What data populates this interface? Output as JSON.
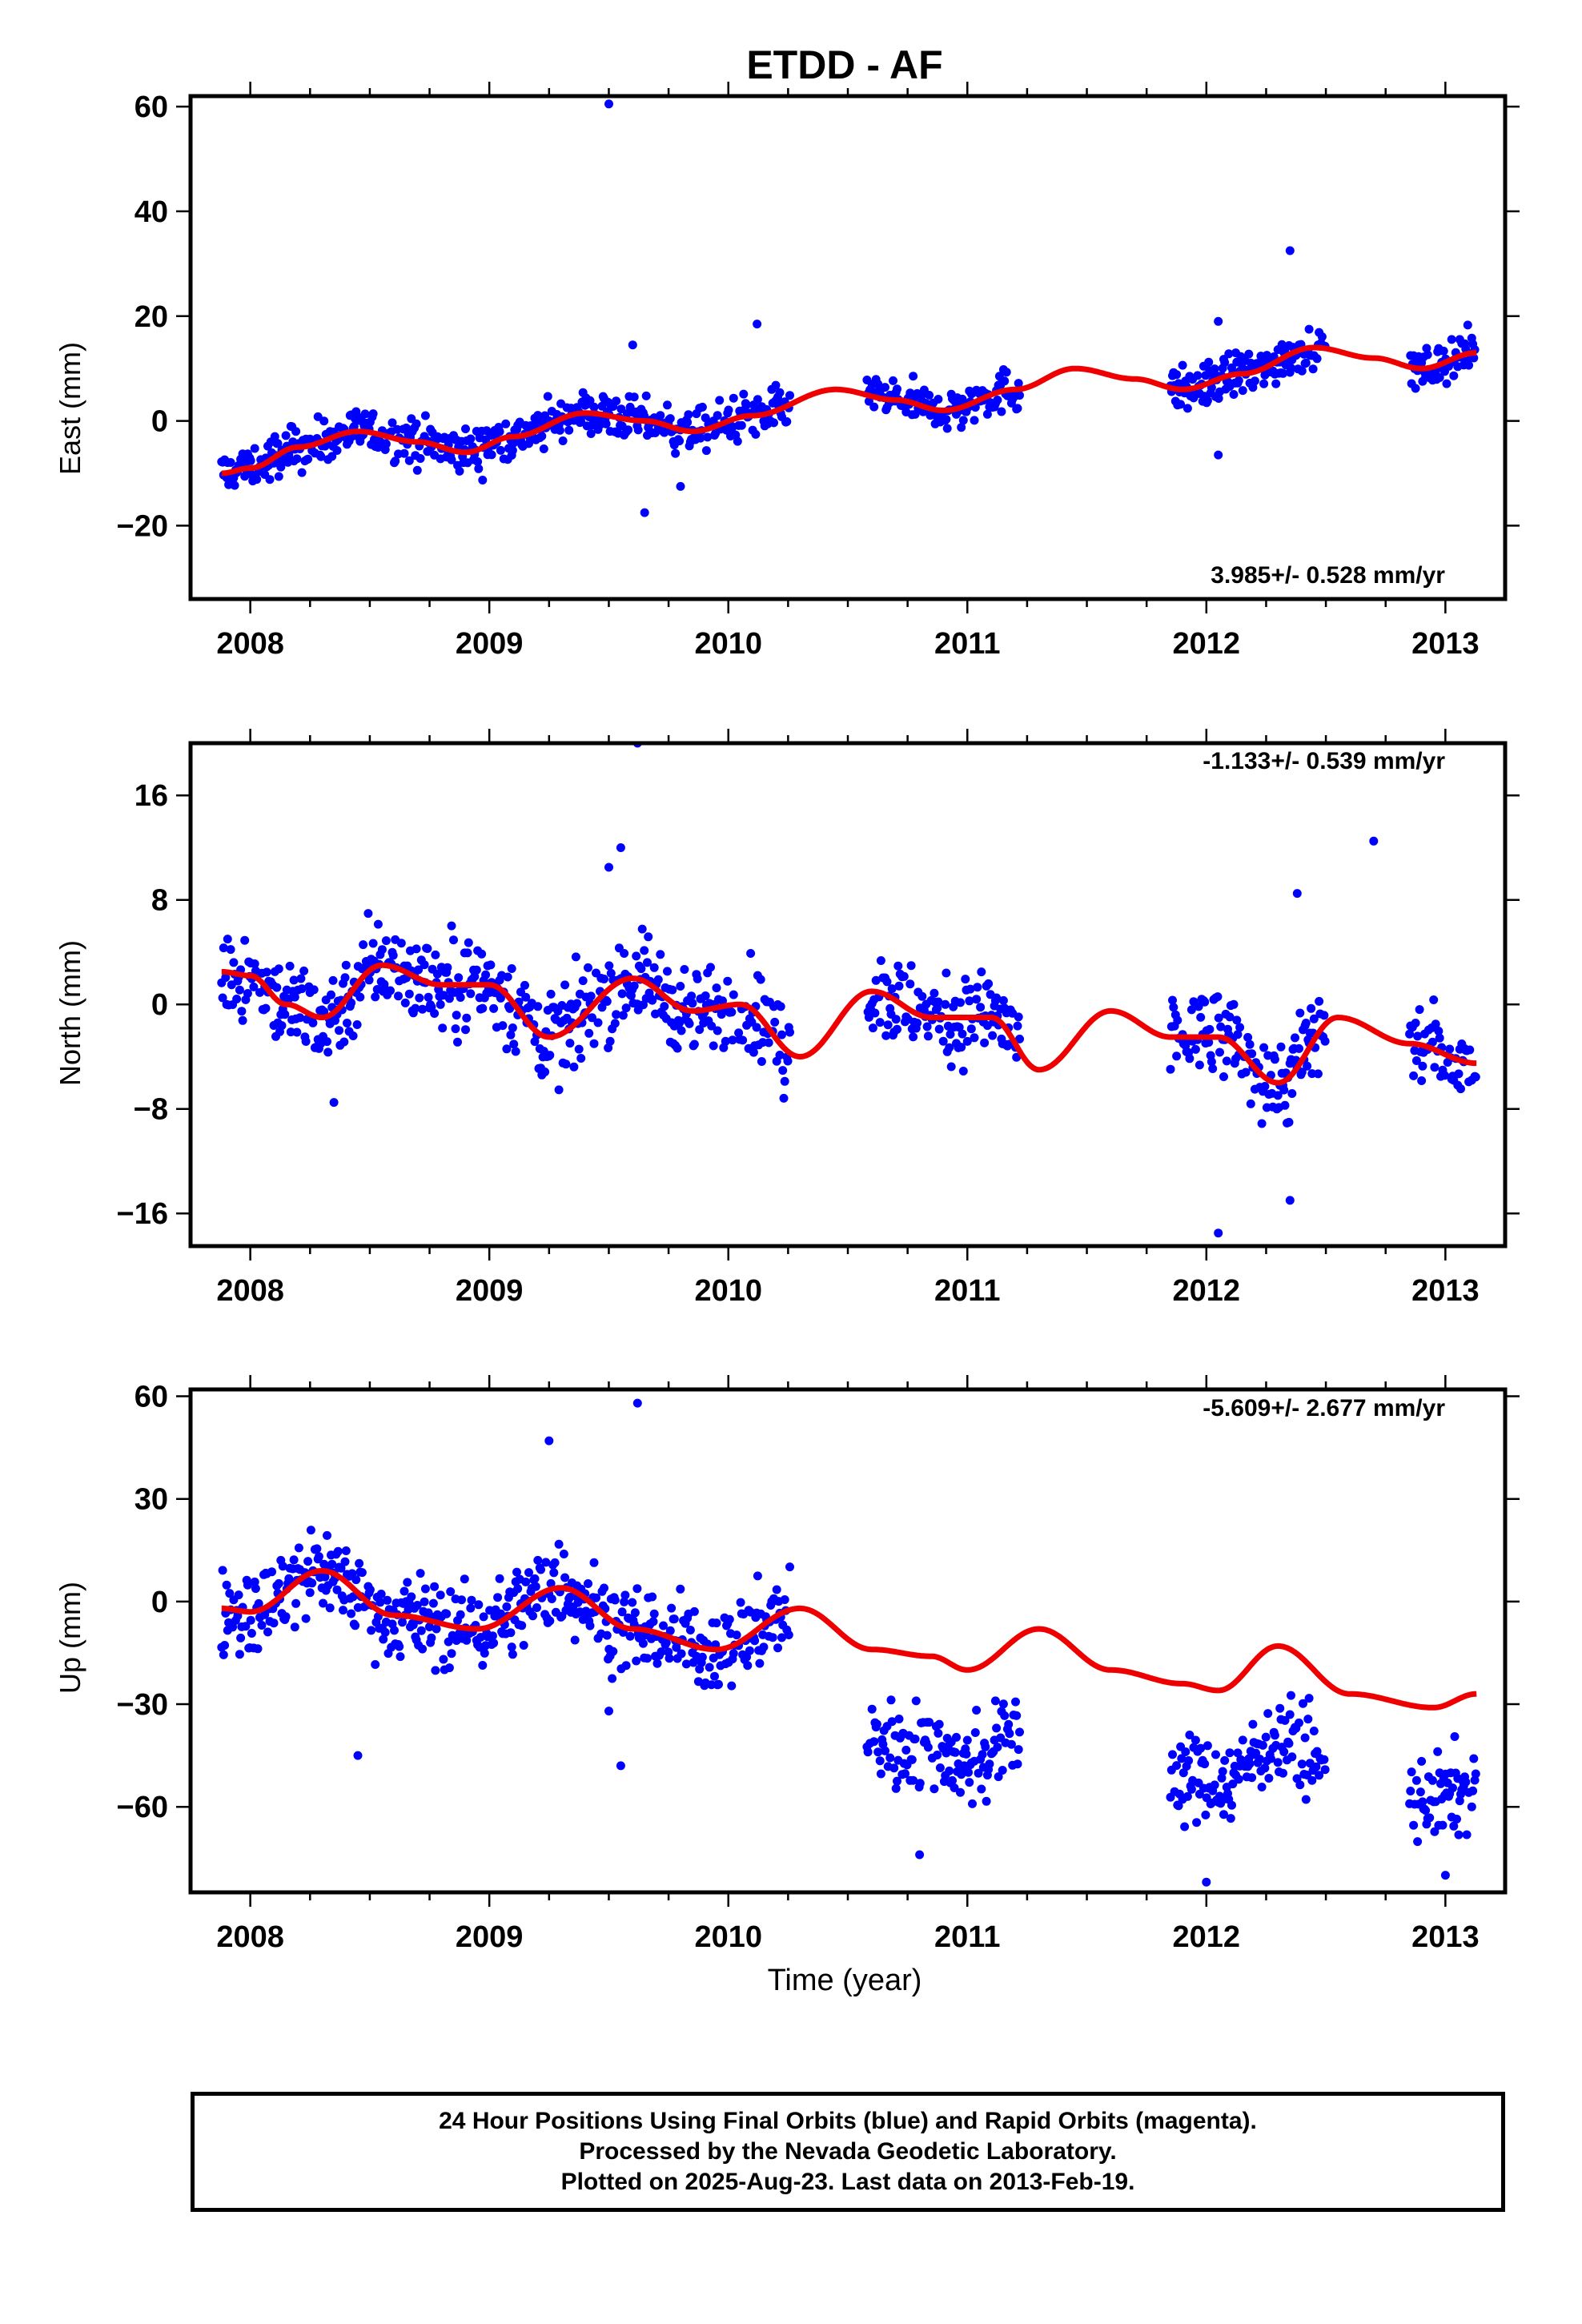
{
  "chart_data": {
    "type": "scatter",
    "title": "ETDD - AF",
    "xlabel": "Time (year)",
    "xlim": [
      2007.75,
      2013.25
    ],
    "x_ticks": [
      "2008",
      "2009",
      "2010",
      "2011",
      "2012",
      "2013"
    ],
    "data_span": [
      2007.88,
      2013.13
    ],
    "gaps": [
      [
        2010.26,
        2010.58
      ],
      [
        2011.22,
        2011.85
      ],
      [
        2012.5,
        2012.85
      ]
    ],
    "colors": {
      "points": "#0000ff",
      "fit": "#ee0000"
    },
    "panels": [
      {
        "name": "east",
        "ylabel": "East (mm)",
        "ylim": [
          -34,
          62
        ],
        "y_ticks": [
          -20,
          0,
          20,
          40,
          60
        ],
        "y_tick_labels": [
          "−20",
          "0",
          "20",
          "40",
          "60"
        ],
        "rate_label": "3.985+/- 0.528 mm/yr",
        "rate_position": "bottom-right",
        "fit_series": {
          "name": "",
          "x": [
            2007.88,
            2008.0,
            2008.2,
            2008.45,
            2008.7,
            2008.9,
            2009.1,
            2009.4,
            2009.65,
            2009.85,
            2010.1,
            2010.45,
            2010.7,
            2010.9,
            2011.2,
            2011.45,
            2011.7,
            2011.9,
            2012.15,
            2012.45,
            2012.7,
            2012.9,
            2013.13
          ],
          "y": [
            -10,
            -9,
            -5,
            -2,
            -4,
            -6,
            -3,
            1.5,
            0,
            -2,
            1,
            6,
            4,
            2,
            6,
            10,
            8,
            6,
            9,
            14,
            12,
            10,
            13
          ]
        },
        "point_series": {
          "name": "",
          "segments": [
            [
              2007.88,
              2010.26
            ],
            [
              2010.58,
              2011.22
            ],
            [
              2011.85,
              2012.5
            ],
            [
              2012.85,
              2013.13
            ]
          ],
          "noise_mm": 3.0,
          "outliers": [
            [
              2009.5,
              60.5
            ],
            [
              2009.6,
              14.5
            ],
            [
              2009.65,
              -17.5
            ],
            [
              2010.12,
              18.5
            ],
            [
              2012.05,
              19
            ],
            [
              2012.35,
              32.5
            ],
            [
              2012.05,
              -6.5
            ],
            [
              2009.8,
              -12.5
            ]
          ]
        }
      },
      {
        "name": "north",
        "ylabel": "North (mm)",
        "ylim": [
          -18.5,
          20
        ],
        "y_ticks": [
          -16,
          -8,
          0,
          8,
          16
        ],
        "y_tick_labels": [
          "−16",
          "−8",
          "0",
          "8",
          "16"
        ],
        "rate_label": "-1.133+/- 0.539 mm/yr",
        "rate_position": "top-right",
        "fit_series": {
          "name": "",
          "x": [
            2007.88,
            2008.0,
            2008.15,
            2008.3,
            2008.55,
            2008.8,
            2009.0,
            2009.25,
            2009.6,
            2009.85,
            2010.05,
            2010.3,
            2010.6,
            2010.85,
            2011.1,
            2011.3,
            2011.6,
            2011.85,
            2012.05,
            2012.3,
            2012.55,
            2012.85,
            2013.13
          ],
          "y": [
            2.5,
            2.2,
            0,
            -1,
            3,
            1.5,
            1.5,
            -2.5,
            2,
            -0.5,
            0,
            -4,
            1,
            -1,
            -1,
            -5,
            -0.5,
            -2.5,
            -2.5,
            -6,
            -1,
            -3,
            -4.5
          ]
        },
        "point_series": {
          "name": "",
          "segments": [
            [
              2007.88,
              2010.26
            ],
            [
              2010.58,
              2011.22
            ],
            [
              2011.85,
              2012.5
            ],
            [
              2012.85,
              2013.13
            ]
          ],
          "noise_mm": 2.5,
          "outliers": [
            [
              2009.62,
              20
            ],
            [
              2009.55,
              12
            ],
            [
              2009.5,
              10.5
            ],
            [
              2012.7,
              12.5
            ],
            [
              2012.38,
              8.5
            ],
            [
              2012.05,
              -17.5
            ],
            [
              2008.35,
              -7.5
            ],
            [
              2012.35,
              -15
            ]
          ]
        }
      },
      {
        "name": "up",
        "ylabel": "Up (mm)",
        "ylim": [
          -85,
          62
        ],
        "y_ticks": [
          -60,
          -30,
          0,
          30,
          60
        ],
        "y_tick_labels": [
          "−60",
          "−30",
          "0",
          "30",
          "60"
        ],
        "rate_label": "-5.609+/- 2.677 mm/yr",
        "rate_position": "top-right",
        "fit_series": {
          "name": "",
          "x": [
            2007.88,
            2008.0,
            2008.3,
            2008.6,
            2008.95,
            2009.3,
            2009.6,
            2009.95,
            2010.3,
            2010.6,
            2010.85,
            2011.0,
            2011.3,
            2011.6,
            2011.9,
            2012.05,
            2012.3,
            2012.6,
            2012.95,
            2013.13
          ],
          "y": [
            -2,
            -3,
            9,
            -4,
            -8,
            4,
            -8,
            -14,
            -2,
            -14,
            -16,
            -20,
            -8,
            -20,
            -24,
            -26,
            -13,
            -27,
            -31,
            -27
          ]
        },
        "point_series": {
          "name": "",
          "segments": [
            [
              2007.88,
              2010.26
            ],
            [
              2010.58,
              2011.22
            ],
            [
              2011.85,
              2012.5
            ],
            [
              2012.85,
              2013.13
            ]
          ],
          "offset_after_2010_5": -45,
          "noise_mm": 9,
          "outliers": [
            [
              2009.62,
              58
            ],
            [
              2009.25,
              47
            ],
            [
              2008.45,
              -45
            ],
            [
              2009.55,
              -48
            ],
            [
              2009.5,
              -32
            ],
            [
              2012.0,
              -82
            ],
            [
              2013.0,
              -80
            ],
            [
              2010.8,
              -74
            ]
          ]
        }
      }
    ]
  },
  "footer": {
    "line1": "24 Hour Positions Using Final Orbits (blue) and Rapid Orbits (magenta).",
    "line2": "Processed by the Nevada Geodetic Laboratory.",
    "line3": "Plotted on 2025-Aug-23. Last data on 2013-Feb-19."
  }
}
